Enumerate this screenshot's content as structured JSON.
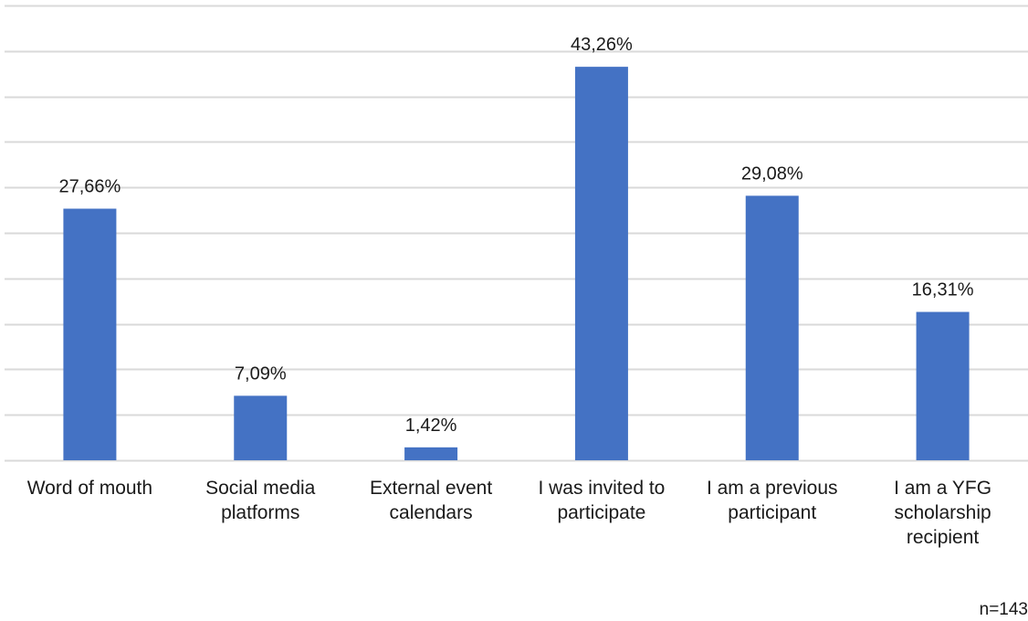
{
  "chart_data": {
    "type": "bar",
    "categories": [
      [
        "Word of mouth"
      ],
      [
        "Social media",
        "platforms"
      ],
      [
        "External event",
        "calendars"
      ],
      [
        "I was invited to",
        "participate"
      ],
      [
        "I am a previous",
        "participant"
      ],
      [
        "I am a YFG",
        "scholarship",
        "recipient"
      ]
    ],
    "values": [
      27.66,
      7.09,
      1.42,
      43.26,
      29.08,
      16.31
    ],
    "data_labels": [
      "27,66%",
      "7,09%",
      "1,42%",
      "43,26%",
      "29,08%",
      "16,31%"
    ],
    "ylim": [
      0,
      50
    ],
    "grid": true,
    "bar_color": "#4472c4",
    "grid_color": "#d9d9d9"
  },
  "footnote": "n=143"
}
